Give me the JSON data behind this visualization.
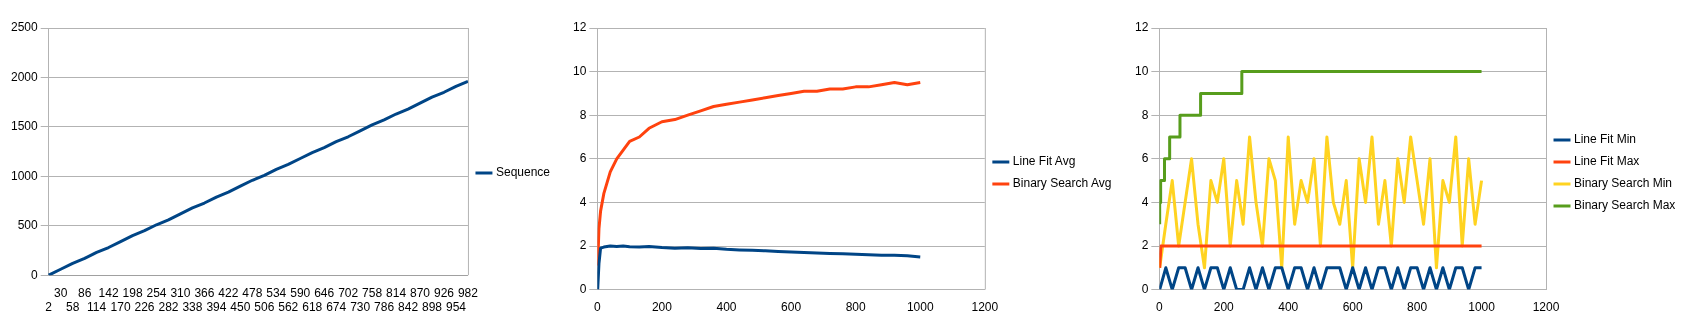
{
  "chart_data": [
    {
      "type": "line",
      "categories": [
        "2",
        "30",
        "58",
        "86",
        "114",
        "142",
        "170",
        "198",
        "226",
        "254",
        "282",
        "310",
        "338",
        "366",
        "394",
        "422",
        "450",
        "478",
        "506",
        "534",
        "562",
        "590",
        "618",
        "646",
        "674",
        "702",
        "730",
        "758",
        "786",
        "814",
        "842",
        "870",
        "898",
        "926",
        "954",
        "982"
      ],
      "series": [
        {
          "name": "Sequence",
          "color": "#004586",
          "values": [
            0,
            60,
            120,
            170,
            230,
            280,
            340,
            400,
            450,
            510,
            560,
            620,
            680,
            730,
            790,
            840,
            900,
            960,
            1010,
            1070,
            1120,
            1180,
            1240,
            1290,
            1350,
            1400,
            1460,
            1520,
            1570,
            1630,
            1680,
            1740,
            1800,
            1850,
            1910,
            1960
          ]
        }
      ],
      "ylim": [
        0,
        2500
      ],
      "yticks": [
        0,
        500,
        1000,
        1500,
        2000,
        2500
      ],
      "grid": "y",
      "legend": "right",
      "marker": "none"
    },
    {
      "type": "line",
      "xlim": [
        0,
        1200
      ],
      "xticks": [
        0,
        200,
        400,
        600,
        800,
        1000,
        1200
      ],
      "ylim": [
        0,
        12
      ],
      "yticks": [
        0,
        2,
        4,
        6,
        8,
        10,
        12
      ],
      "grid": "y",
      "legend": "right",
      "marker": "none",
      "series": [
        {
          "name": "Line Fit Avg",
          "color": "#004586",
          "x": [
            1,
            5,
            10,
            20,
            40,
            60,
            80,
            100,
            130,
            160,
            200,
            240,
            280,
            320,
            360,
            400,
            440,
            480,
            520,
            560,
            600,
            640,
            680,
            720,
            760,
            800,
            840,
            880,
            920,
            960,
            1000
          ],
          "values": [
            0,
            1.2,
            1.9,
            1.95,
            2.0,
            1.98,
            2.0,
            1.97,
            1.95,
            1.98,
            1.93,
            1.9,
            1.92,
            1.88,
            1.9,
            1.85,
            1.82,
            1.8,
            1.78,
            1.75,
            1.72,
            1.7,
            1.68,
            1.66,
            1.65,
            1.62,
            1.6,
            1.58,
            1.57,
            1.55,
            1.5
          ]
        },
        {
          "name": "Binary Search Avg",
          "color": "#ff420e",
          "x": [
            1,
            5,
            10,
            20,
            40,
            60,
            80,
            100,
            130,
            160,
            200,
            240,
            280,
            320,
            360,
            400,
            440,
            480,
            520,
            560,
            600,
            640,
            680,
            720,
            760,
            800,
            840,
            880,
            920,
            960,
            1000
          ],
          "values": [
            1.1,
            2.8,
            3.6,
            4.4,
            5.4,
            6.0,
            6.4,
            6.8,
            7.0,
            7.4,
            7.7,
            7.8,
            8.0,
            8.2,
            8.4,
            8.5,
            8.6,
            8.7,
            8.8,
            8.9,
            9.0,
            9.1,
            9.1,
            9.2,
            9.2,
            9.3,
            9.3,
            9.4,
            9.5,
            9.4,
            9.5
          ]
        }
      ]
    },
    {
      "type": "line",
      "xlim": [
        0,
        1200
      ],
      "xticks": [
        0,
        200,
        400,
        600,
        800,
        1000,
        1200
      ],
      "ylim": [
        0,
        12
      ],
      "yticks": [
        0,
        2,
        4,
        6,
        8,
        10,
        12
      ],
      "grid": "y",
      "legend": "right",
      "marker": "none",
      "series": [
        {
          "name": "Line Fit Min",
          "color": "#004586",
          "x": [
            1,
            20,
            40,
            60,
            80,
            100,
            120,
            140,
            160,
            180,
            200,
            220,
            240,
            260,
            280,
            300,
            320,
            340,
            360,
            380,
            400,
            420,
            440,
            460,
            480,
            500,
            520,
            540,
            560,
            580,
            600,
            620,
            640,
            660,
            680,
            700,
            720,
            740,
            760,
            780,
            800,
            820,
            840,
            860,
            880,
            900,
            920,
            940,
            960,
            980,
            1000
          ],
          "values": [
            0,
            1,
            0,
            1,
            1,
            0,
            1,
            0,
            1,
            1,
            0,
            1,
            0,
            0,
            1,
            0,
            1,
            0,
            1,
            1,
            0,
            1,
            1,
            0,
            1,
            0,
            1,
            1,
            1,
            0,
            1,
            0,
            1,
            0,
            1,
            1,
            0,
            1,
            0,
            1,
            1,
            0,
            1,
            0,
            1,
            0,
            1,
            1,
            0,
            1,
            1
          ]
        },
        {
          "name": "Line Fit Max",
          "color": "#ff420e",
          "x": [
            1,
            5,
            1000
          ],
          "values": [
            1,
            2,
            2
          ]
        },
        {
          "name": "Binary Search Min",
          "color": "#ffd320",
          "x": [
            1,
            20,
            40,
            60,
            80,
            100,
            120,
            140,
            160,
            180,
            200,
            220,
            240,
            260,
            280,
            300,
            320,
            340,
            360,
            380,
            400,
            420,
            440,
            460,
            480,
            500,
            520,
            540,
            560,
            580,
            600,
            620,
            640,
            660,
            680,
            700,
            720,
            740,
            760,
            780,
            800,
            820,
            840,
            860,
            880,
            900,
            920,
            940,
            960,
            980,
            1000
          ],
          "values": [
            1,
            3,
            5,
            2,
            4,
            6,
            3,
            1,
            5,
            4,
            6,
            2,
            5,
            3,
            7,
            4,
            2,
            6,
            5,
            1,
            7,
            3,
            5,
            4,
            6,
            2,
            7,
            4,
            3,
            5,
            1,
            6,
            4,
            7,
            3,
            5,
            2,
            6,
            4,
            7,
            5,
            3,
            6,
            1,
            5,
            4,
            7,
            2,
            6,
            3,
            5
          ]
        },
        {
          "name": "Binary Search Max",
          "type": "step",
          "color": "#579d1c",
          "x": [
            1,
            4,
            16,
            32,
            64,
            128,
            256,
            512,
            1000
          ],
          "values": [
            3,
            4,
            5,
            6,
            7,
            8,
            9,
            10,
            10
          ]
        }
      ]
    }
  ]
}
